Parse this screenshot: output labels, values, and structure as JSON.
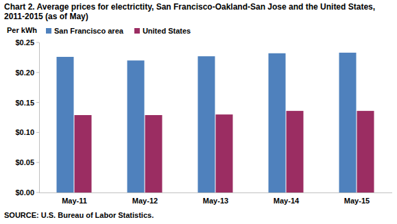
{
  "chart_data": {
    "type": "bar",
    "title": "Chart 2. Average prices for electrictity, San Francisco-Oakland-San Jose and the United States, 2011-2015 (as of May)",
    "y_label": "Per kWh",
    "source": "SOURCE: U.S. Bureau of Labor Statistics.",
    "categories": [
      "May-11",
      "May-12",
      "May-13",
      "May-14",
      "May-15"
    ],
    "series": [
      {
        "name": "San Francisco area",
        "color": "#4F81BD",
        "values": [
          0.226,
          0.22,
          0.227,
          0.232,
          0.233
        ]
      },
      {
        "name": "United States",
        "color": "#9B2D62",
        "values": [
          0.129,
          0.129,
          0.13,
          0.136,
          0.136
        ]
      }
    ],
    "ylim": [
      0,
      0.25
    ],
    "yticks": [
      {
        "value": 0,
        "label": "$0.00"
      },
      {
        "value": 0.05,
        "label": "$0.05"
      },
      {
        "value": 0.1,
        "label": "$0.10"
      },
      {
        "value": 0.15,
        "label": "$0.15"
      },
      {
        "value": 0.2,
        "label": "$0.20"
      },
      {
        "value": 0.25,
        "label": "$0.25"
      }
    ],
    "grid": false,
    "legend": "upper left"
  }
}
